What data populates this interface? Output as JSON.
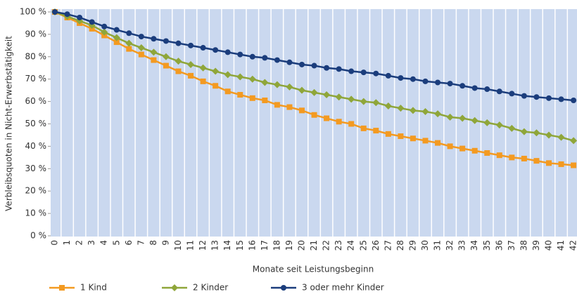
{
  "chart_data": {
    "type": "line",
    "x_label": "Monate seit Leistungsbeginn",
    "y_label": "Verbleibsquoten in Nicht-Erwerbstätigkeit",
    "categories": [
      "0",
      "1",
      "2",
      "3",
      "4",
      "5",
      "6",
      "7",
      "8",
      "9",
      "10",
      "11",
      "12",
      "13",
      "14",
      "15",
      "16",
      "17",
      "18",
      "19",
      "20",
      "21",
      "22",
      "23",
      "24",
      "25",
      "26",
      "27",
      "28",
      "29",
      "30",
      "31",
      "32",
      "33",
      "34",
      "35",
      "36",
      "37",
      "38",
      "39",
      "40",
      "41",
      "42"
    ],
    "series": [
      {
        "name": "1 Kind",
        "color": "#f39a21",
        "marker": "square",
        "values": [
          100,
          97.5,
          95,
          92.5,
          89.5,
          86.5,
          83.5,
          81,
          78.5,
          76,
          73.5,
          71.5,
          69,
          67,
          64.5,
          63,
          61.5,
          60.5,
          58.5,
          57.5,
          56,
          54,
          52.5,
          51,
          50,
          48,
          47,
          45.5,
          44.5,
          43.5,
          42.5,
          41.5,
          40,
          39,
          38,
          37,
          36,
          35,
          34.5,
          33.5,
          32.5,
          32,
          31.5
        ]
      },
      {
        "name": "2 Kinder",
        "color": "#8fa63a",
        "marker": "diamond",
        "values": [
          100,
          98,
          96,
          94,
          91,
          88.5,
          86,
          84,
          82,
          80,
          78,
          76.5,
          75,
          73.5,
          72,
          71,
          70,
          68.5,
          67.5,
          66.5,
          65,
          64,
          63,
          62,
          61,
          60,
          59.5,
          58,
          57,
          56,
          55.5,
          54.5,
          53,
          52.5,
          51.5,
          50.5,
          49.5,
          48,
          46.5,
          46,
          45,
          44,
          42.5
        ]
      },
      {
        "name": "3 oder mehr Kinder",
        "color": "#1b3d7c",
        "marker": "circle",
        "values": [
          100,
          99,
          97.5,
          95.5,
          93.5,
          92,
          90.5,
          89,
          88,
          87,
          86,
          85,
          84,
          83,
          82,
          81,
          80,
          79.5,
          78.5,
          77.5,
          76.5,
          76,
          75,
          74.5,
          73.5,
          73,
          72.5,
          71.5,
          70.5,
          70,
          69,
          68.5,
          68,
          67,
          66,
          65.5,
          64.5,
          63.5,
          62.5,
          62,
          61.5,
          61,
          60.5
        ]
      }
    ],
    "ylim": [
      0,
      100
    ],
    "yticks": [
      {
        "value": 0,
        "label": "0 %"
      },
      {
        "value": 10,
        "label": "10 %"
      },
      {
        "value": 20,
        "label": "20 %"
      },
      {
        "value": 30,
        "label": "30 %"
      },
      {
        "value": 40,
        "label": "40 %"
      },
      {
        "value": 50,
        "label": "50 %"
      },
      {
        "value": 60,
        "label": "60 %"
      },
      {
        "value": 70,
        "label": "70 %"
      },
      {
        "value": 80,
        "label": "80 %"
      },
      {
        "value": 90,
        "label": "90 %"
      },
      {
        "value": 100,
        "label": "100 %"
      }
    ],
    "legend": "bottom-left"
  }
}
